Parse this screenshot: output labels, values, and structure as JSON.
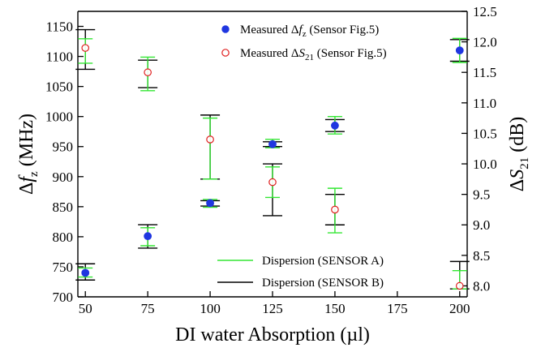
{
  "chart_data": {
    "type": "scatter",
    "xlabel": "DI water Absorption (µl)",
    "ylabel_left": "Δf_z (MHz)",
    "ylabel_right": "ΔS_21 (dB)",
    "x_ticks": [
      50,
      75,
      100,
      125,
      150,
      175,
      200
    ],
    "y_left_ticks": [
      700,
      750,
      800,
      850,
      900,
      950,
      1000,
      1050,
      1100,
      1150
    ],
    "y_right_ticks": [
      8.0,
      8.5,
      9.0,
      9.5,
      10.0,
      10.5,
      11.0,
      11.5,
      12.0,
      12.5
    ],
    "xlim": [
      47,
      203
    ],
    "ylim_left": [
      700,
      1175
    ],
    "ylim_right": [
      7.82,
      12.5
    ],
    "grid": false,
    "legend_placement": "top-right and bottom-center",
    "series": [
      {
        "name": "Measured Δf_z (Sensor Fig.5)",
        "axis": "left",
        "marker": "filled-circle",
        "color": "#1f36e0",
        "x": [
          50,
          75,
          100,
          125,
          150,
          200
        ],
        "y": [
          740,
          801,
          856,
          954,
          985,
          1110
        ],
        "err_a": [
          [
            733,
            748
          ],
          [
            785,
            815
          ],
          [
            849,
            862
          ],
          [
            948,
            962
          ],
          [
            971,
            1000
          ],
          [
            1090,
            1130
          ]
        ],
        "err_b": [
          [
            728,
            755
          ],
          [
            781,
            820
          ],
          [
            851,
            860
          ],
          [
            950,
            958
          ],
          [
            975,
            995
          ],
          [
            1092,
            1128
          ]
        ]
      },
      {
        "name": "Measured ΔS_21 (Sensor Fig.5)",
        "axis": "right",
        "marker": "open-circle",
        "color": "#e02020",
        "x": [
          50,
          75,
          100,
          125,
          150,
          200
        ],
        "y": [
          11.9,
          11.5,
          10.4,
          9.7,
          9.25,
          8.0
        ],
        "err_a": [
          [
            11.65,
            12.05
          ],
          [
            11.2,
            11.75
          ],
          [
            9.75,
            10.75
          ],
          [
            9.45,
            9.95
          ],
          [
            8.87,
            9.6
          ],
          [
            7.95,
            8.25
          ]
        ],
        "err_b": [
          [
            11.55,
            12.2
          ],
          [
            11.25,
            11.7
          ],
          [
            9.75,
            10.8
          ],
          [
            9.15,
            10.0
          ],
          [
            9.0,
            9.5
          ],
          [
            7.95,
            8.4
          ]
        ]
      }
    ],
    "legend_markers": [
      {
        "label": "Measured Δf_z (Sensor Fig.5)"
      },
      {
        "label": "Measured ΔS_21 (Sensor Fig.5)"
      }
    ],
    "legend_lines": [
      {
        "label": "Dispersion (SENSOR A)",
        "color": "#33e633"
      },
      {
        "label": "Dispersion (SENSOR B)",
        "color": "#000000"
      }
    ]
  }
}
